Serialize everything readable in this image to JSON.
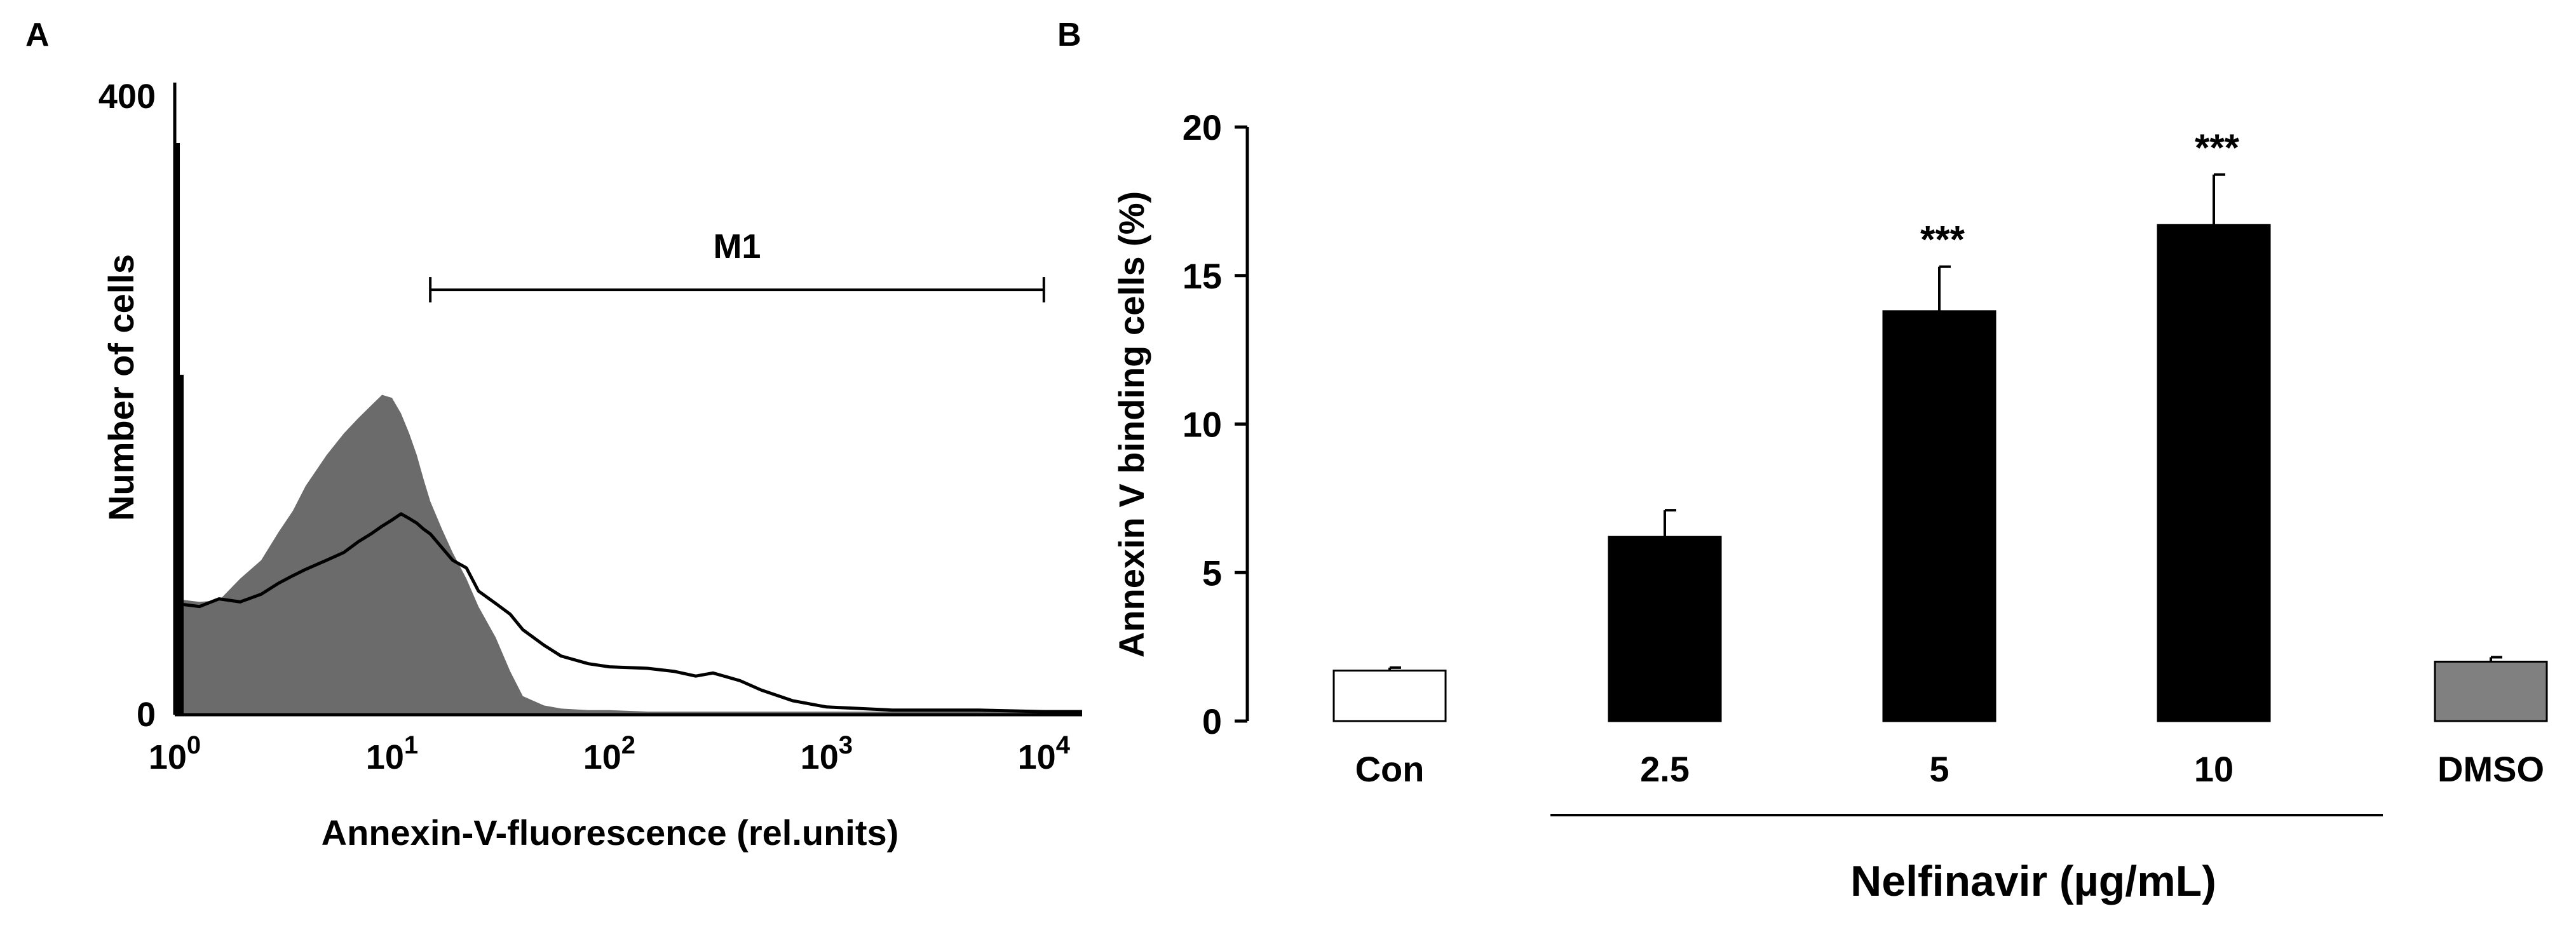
{
  "panels": {
    "a_label": "A",
    "b_label": "B"
  },
  "chart_data": [
    {
      "type": "area",
      "panel": "A",
      "xlabel": "Annexin-V-fluorescence (rel.units)",
      "ylabel": "Number of cells",
      "x_scale": "log",
      "xlim": [
        1,
        15000
      ],
      "ylim": [
        0,
        400
      ],
      "y_ticks": [
        {
          "value": 0,
          "label": "0"
        },
        {
          "value": 400,
          "label": "400"
        }
      ],
      "x_ticks": [
        {
          "value": 1,
          "base": "10",
          "exp": "0"
        },
        {
          "value": 10,
          "base": "10",
          "exp": "1"
        },
        {
          "value": 100,
          "base": "10",
          "exp": "2"
        },
        {
          "value": 1000,
          "base": "10",
          "exp": "3"
        },
        {
          "value": 10000,
          "base": "10",
          "exp": "4"
        }
      ],
      "gate": {
        "label": "M1",
        "x_start": 15,
        "x_end": 10000,
        "y": 275
      },
      "fill_color": "#6b6b6b",
      "line_color": "#000000",
      "series": [
        {
          "style": "filled",
          "x": [
            1,
            1.3,
            1.6,
            2,
            2.5,
            3,
            3.5,
            4,
            5,
            6,
            7,
            8,
            9,
            10,
            11,
            12,
            13,
            14,
            15,
            17,
            19,
            22,
            25,
            30,
            35,
            40,
            50,
            60,
            80,
            100,
            150,
            200,
            300,
            500,
            1000,
            3000,
            10000,
            15000
          ],
          "y": [
            75,
            73,
            74,
            88,
            100,
            118,
            132,
            148,
            168,
            182,
            192,
            200,
            207,
            205,
            195,
            182,
            168,
            152,
            138,
            120,
            105,
            88,
            70,
            50,
            28,
            12,
            6,
            4,
            3,
            3,
            2,
            2,
            2,
            2,
            2,
            2,
            2,
            2
          ]
        },
        {
          "style": "line",
          "x": [
            1,
            1.3,
            1.6,
            2,
            2.5,
            3,
            3.5,
            4,
            5,
            6,
            7,
            8,
            9,
            10,
            11,
            12,
            13,
            14,
            15,
            17,
            19,
            22,
            25,
            30,
            35,
            40,
            50,
            60,
            80,
            100,
            150,
            200,
            250,
            300,
            400,
            500,
            700,
            1000,
            2000,
            5000,
            10000,
            15000
          ],
          "y": [
            72,
            70,
            75,
            73,
            78,
            85,
            90,
            94,
            100,
            105,
            112,
            117,
            122,
            126,
            130,
            127,
            124,
            120,
            117,
            108,
            100,
            95,
            80,
            72,
            65,
            55,
            45,
            38,
            33,
            31,
            30,
            28,
            25,
            27,
            22,
            16,
            9,
            5,
            3,
            3,
            2,
            2
          ]
        }
      ],
      "spikes": [
        {
          "x": 1,
          "y": 370
        },
        {
          "x": 1.04,
          "y": 220
        }
      ]
    },
    {
      "type": "bar",
      "panel": "B",
      "ylabel": "Annexin V binding cells (%)",
      "xlabel": "Nelfinavir (µg/mL)",
      "ylim": [
        0,
        20
      ],
      "y_ticks": [
        0,
        5,
        10,
        15,
        20
      ],
      "categories": [
        "Con",
        "2.5",
        "5",
        "10",
        "DMSO"
      ],
      "values": [
        1.7,
        6.2,
        13.8,
        16.7,
        2.0
      ],
      "errors": [
        0.1,
        0.9,
        1.5,
        1.7,
        0.15
      ],
      "colors": [
        "#ffffff",
        "#000000",
        "#000000",
        "#000000",
        "#808080"
      ],
      "significance": [
        "",
        "",
        "***",
        "***",
        ""
      ]
    }
  ]
}
